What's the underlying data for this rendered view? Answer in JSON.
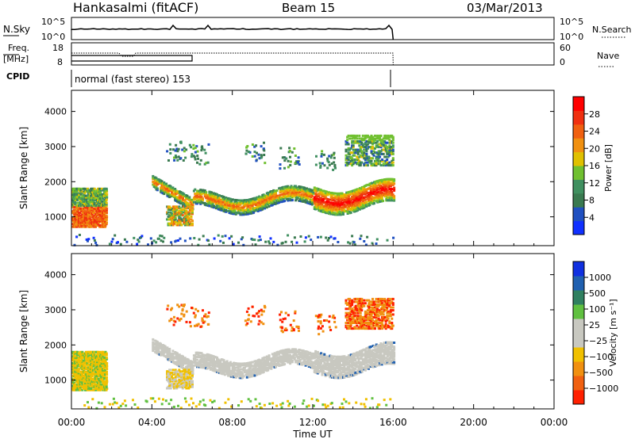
{
  "header": {
    "station": "Hankasalmi (fitACF)",
    "beam": "Beam 15",
    "date": "03/Mar/2013"
  },
  "status_panels": {
    "nsky_label": "N.Sky",
    "nsky_ticks": [
      "10^5",
      "10^0"
    ],
    "nsearch_label": "N.Search",
    "nsearch_ticks": [
      "10^5",
      "10^0"
    ],
    "freq_label_1": "Freq.",
    "freq_label_2": "[MHz]",
    "freq_ticks": [
      "18",
      "8"
    ],
    "nave_label": "Nave",
    "nave_ticks": [
      "60",
      "0"
    ],
    "cpid_label": "CPID",
    "cpid_text": "normal (fast stereo) 153"
  },
  "chart_data": [
    {
      "type": "heatmap",
      "name": "power-panel",
      "ylabel": "Slant Range [km]",
      "yticks": [
        "1000",
        "2000",
        "3000",
        "4000"
      ],
      "y_values": [
        1000,
        2000,
        3000,
        4000
      ],
      "ylim": [
        180,
        4600
      ],
      "xlim": [
        0,
        24
      ],
      "data_end_hour": 16,
      "colorbar": {
        "label": "Power [dB]",
        "ticks": [
          "4",
          "8",
          "12",
          "16",
          "20",
          "24",
          "28"
        ],
        "tick_values": [
          4,
          8,
          12,
          16,
          20,
          24,
          28
        ],
        "range": [
          0,
          32
        ],
        "colors": [
          "#1030ff",
          "#2050c0",
          "#3a7a50",
          "#409060",
          "#70c030",
          "#e0c000",
          "#f09010",
          "#f06010",
          "#f03010",
          "#ff0000"
        ]
      }
    },
    {
      "type": "heatmap",
      "name": "velocity-panel",
      "ylabel": "Slant Range [km]",
      "yticks": [
        "1000",
        "2000",
        "3000",
        "4000"
      ],
      "y_values": [
        1000,
        2000,
        3000,
        4000
      ],
      "ylim": [
        180,
        4600
      ],
      "xlim": [
        0,
        24
      ],
      "data_end_hour": 16,
      "colorbar": {
        "label": "Velocity [m s⁻¹]",
        "ticks": [
          "1000",
          "500",
          "100",
          "25",
          "−25",
          "−100",
          "−500",
          "−1000"
        ],
        "colors": [
          "#1030e0",
          "#2060b0",
          "#308060",
          "#60c040",
          "#c8c8c0",
          "#c8c8c0",
          "#f0c000",
          "#f09010",
          "#f06010",
          "#ff2000"
        ]
      }
    }
  ],
  "x_axis": {
    "label": "Time UT",
    "ticks": [
      "00:00",
      "04:00",
      "08:00",
      "12:00",
      "16:00",
      "20:00",
      "00:00"
    ],
    "tick_hours": [
      0,
      4,
      8,
      12,
      16,
      20,
      24
    ]
  }
}
